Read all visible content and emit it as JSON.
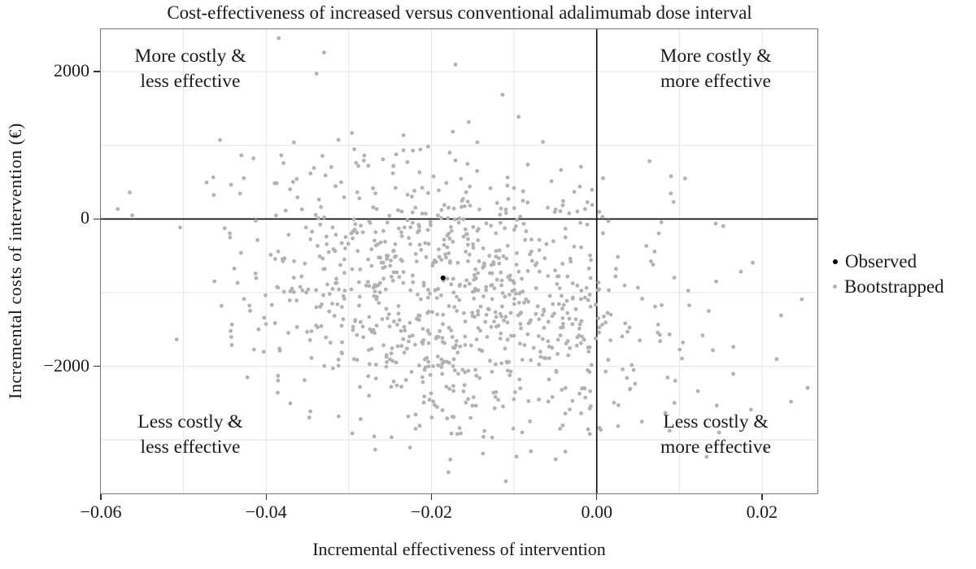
{
  "figure": {
    "title": "Cost-effectiveness of increased versus conventional adalimumab dose interval",
    "x_axis_title": "Incremental effectiveness of intervention",
    "y_axis_title": "Incremental costs of intervention (€)"
  },
  "quadrants": {
    "top_left": {
      "line1": "More costly &",
      "line2": "less effective"
    },
    "top_right": {
      "line1": "More costly &",
      "line2": "more effective"
    },
    "bottom_left": {
      "line1": "Less costly &",
      "line2": "less effective"
    },
    "bottom_right": {
      "line1": "Less costly &",
      "line2": "more effective"
    }
  },
  "legend": {
    "items": [
      {
        "label": "Observed",
        "color": "#000000",
        "dot_size": 6
      },
      {
        "label": "Bootstrapped",
        "color": "#b2b2b2",
        "dot_size": 5
      }
    ]
  },
  "chart_data": {
    "type": "scatter",
    "title": "Cost-effectiveness of increased versus conventional adalimumab dose interval",
    "xlabel": "Incremental effectiveness of intervention",
    "ylabel": "Incremental costs of intervention (€)",
    "xlim": [
      -0.06,
      0.0267
    ],
    "ylim": [
      -3725,
      2575
    ],
    "xticks": [
      {
        "v": -0.06,
        "label": "−0.06"
      },
      {
        "v": -0.04,
        "label": "−0.04"
      },
      {
        "v": -0.02,
        "label": "−0.02"
      },
      {
        "v": 0,
        "label": "0.00"
      },
      {
        "v": 0.02,
        "label": "0.02"
      }
    ],
    "yticks": [
      {
        "v": 2000,
        "label": "2000"
      },
      {
        "v": 0,
        "label": "0"
      },
      {
        "v": -2000,
        "label": "−2000"
      }
    ],
    "xgrid": [
      -0.05,
      -0.04,
      -0.03,
      -0.02,
      -0.01,
      0.01,
      0.02
    ],
    "ygrid": [
      2000,
      1000,
      -1000,
      -2000,
      -3000
    ],
    "zero_line_x": 0,
    "zero_line_y": 0,
    "grid": true,
    "legend_position": "right",
    "series": [
      {
        "name": "Observed",
        "color": "#000000",
        "marker_radius": 3,
        "points": [
          [
            -0.0186,
            -800
          ]
        ]
      },
      {
        "name": "Bootstrapped",
        "color": "#b2b2b2",
        "marker_radius": 2.4,
        "cloud": {
          "count": 990,
          "seed": 7,
          "mean": [
            -0.017,
            -1000
          ],
          "sd": [
            0.013,
            1000
          ],
          "corr": -0.25
        },
        "outlier_points": [
          [
            -0.033,
            2260
          ],
          [
            -0.0565,
            360
          ],
          [
            -0.0562,
            50
          ],
          [
            0.009,
            580
          ],
          [
            0.0093,
            230
          ],
          [
            0.0235,
            -2480
          ],
          [
            0.0133,
            -3230
          ],
          [
            -0.011,
            -3560
          ]
        ],
        "note": "Printed figure shows ~1000 unlabeled bootstrap replicates; cloud reproduced with seeded bivariate-normal approximation matching center, spread and extremes."
      }
    ]
  },
  "colors": {
    "background": "#ffffff",
    "plot_border": "#777777",
    "gridline": "#e5e5e5",
    "zero_line": "#000000",
    "tick": "#333333",
    "text": "#1a1a1a",
    "observed": "#000000",
    "bootstrapped": "#b2b2b2"
  }
}
